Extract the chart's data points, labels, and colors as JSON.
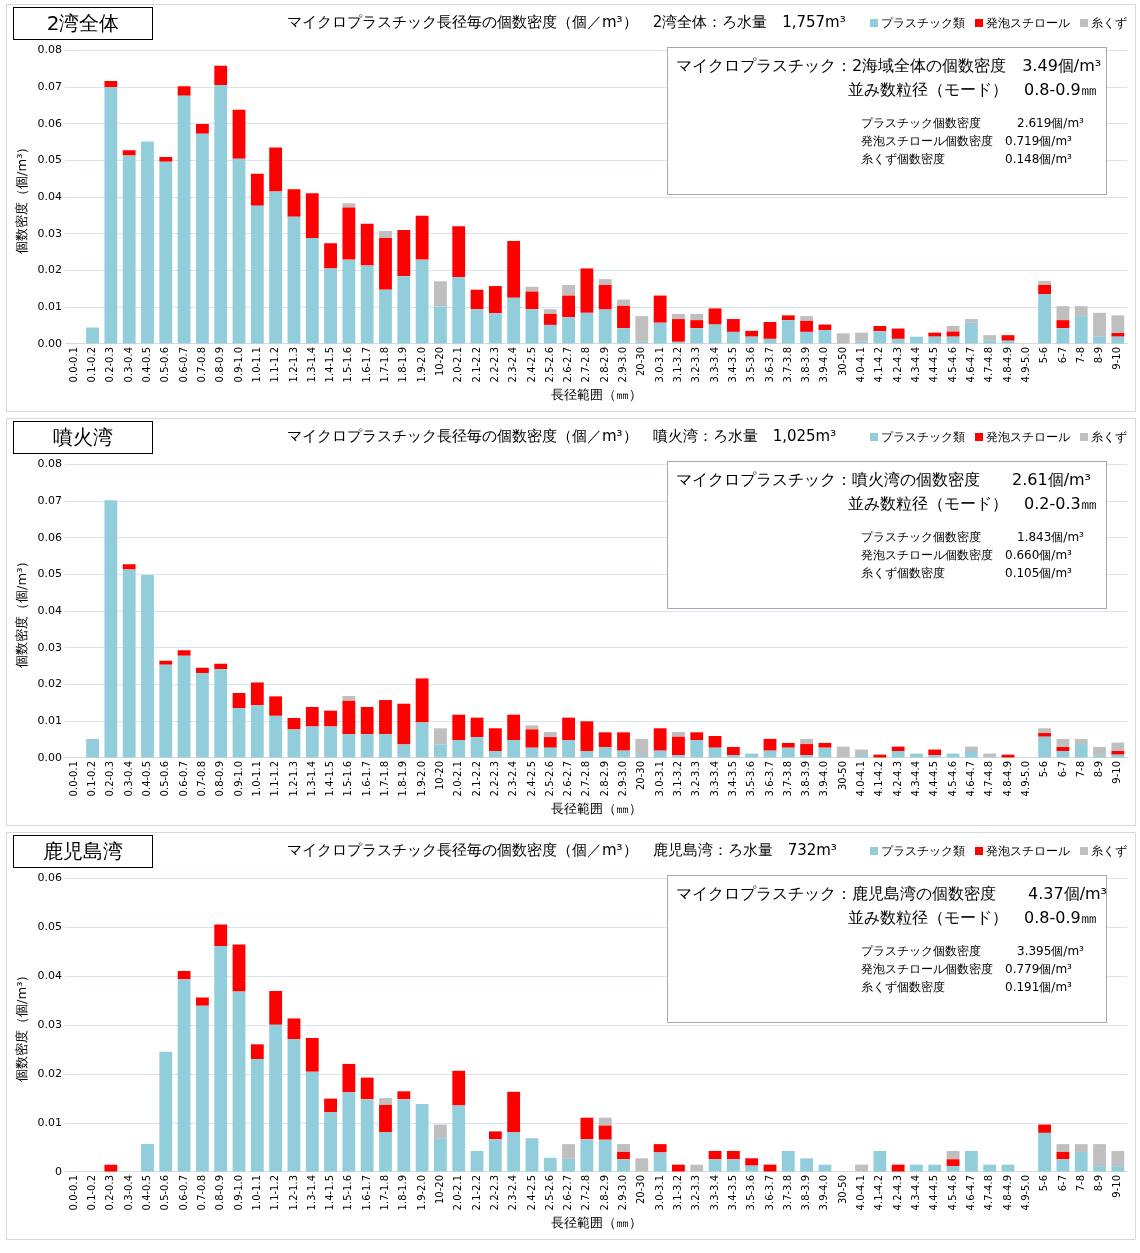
{
  "chart_data": [
    {
      "type": "bar",
      "subtitle": "2湾全体",
      "title": "マイクロプラスチック長径毎の個数密度（個／m³）　2湾全体：ろ水量　1,757m³",
      "xlabel": "長径範囲（㎜）",
      "ylabel": "個数密度（個/m³）",
      "categories": [
        "0.0-0.1",
        "0.1-0.2",
        "0.2-0.3",
        "0.3-0.4",
        "0.4-0.5",
        "0.5-0.6",
        "0.6-0.7",
        "0.7-0.8",
        "0.8-0.9",
        "0.9-1.0",
        "1.0-1.1",
        "1.1-1.2",
        "1.2-1.3",
        "1.3-1.4",
        "1.4-1.5",
        "1.5-1.6",
        "1.6-1.7",
        "1.7-1.8",
        "1.8-1.9",
        "1.9-2.0",
        "10-20",
        "2.0-2.1",
        "2.1-2.2",
        "2.2-2.3",
        "2.3-2.4",
        "2.4-2.5",
        "2.5-2.6",
        "2.6-2.7",
        "2.7-2.8",
        "2.8-2.9",
        "2.9-3.0",
        "20-30",
        "3.0-3.1",
        "3.1-3.2",
        "3.2-3.3",
        "3.3-3.4",
        "3.4-3.5",
        "3.5-3.6",
        "3.6-3.7",
        "3.7-3.8",
        "3.8-3.9",
        "3.9-4.0",
        "30-50",
        "4.0-4.1",
        "4.1-4.2",
        "4.2-4.3",
        "4.3-4.4",
        "4.4-4.5",
        "4.5-4.6",
        "4.6-4.7",
        "4.7-4.8",
        "4.8-4.9",
        "4.9-5.0",
        "5-6",
        "6-7",
        "7-8",
        "8-9",
        "9-10"
      ],
      "series": [
        {
          "name": "プラスチック類",
          "color": "#92cddc",
          "values": [
            0,
            0.0045,
            0.07,
            0.0514,
            0.0552,
            0.0497,
            0.0677,
            0.0573,
            0.0706,
            0.0505,
            0.0377,
            0.0416,
            0.0347,
            0.0289,
            0.0206,
            0.023,
            0.0214,
            0.0148,
            0.0185,
            0.023,
            0.0102,
            0.0182,
            0.0095,
            0.0084,
            0.0126,
            0.0095,
            0.0052,
            0.0073,
            0.0085,
            0.0094,
            0.0043,
            0.0006,
            0.0058,
            0.0006,
            0.0043,
            0.0053,
            0.0033,
            0.002,
            0.0014,
            0.0065,
            0.0033,
            0.0038,
            0,
            0.0006,
            0.0035,
            0.0014,
            0.002,
            0.002,
            0.002,
            0.0058,
            0.001,
            0.0009,
            0,
            0.0136,
            0.0043,
            0.0076,
            0.002,
            0.002
          ]
        },
        {
          "name": "発泡スチロール",
          "color": "#ff0000",
          "values": [
            0,
            0,
            0.0017,
            0.0014,
            0,
            0.0013,
            0.0026,
            0.0027,
            0.0053,
            0.0134,
            0.0087,
            0.012,
            0.0075,
            0.0122,
            0.0069,
            0.0142,
            0.0114,
            0.0141,
            0.0126,
            0.012,
            0,
            0.0139,
            0.0053,
            0.0074,
            0.0155,
            0.0048,
            0.003,
            0.0059,
            0.0121,
            0.0067,
            0.0061,
            0,
            0.0074,
            0.0062,
            0.0022,
            0.0044,
            0.0035,
            0.0016,
            0.0046,
            0.0013,
            0.003,
            0.0015,
            0,
            0,
            0.0014,
            0.0028,
            0,
            0.0011,
            0.0014,
            0,
            0,
            0.0015,
            0,
            0.0025,
            0.0022,
            0,
            0,
            0.001
          ]
        },
        {
          "name": "糸くず",
          "color": "#bfbfbf",
          "values": [
            0,
            0,
            0,
            0,
            0,
            0,
            0,
            0,
            0,
            0,
            0,
            0,
            0,
            0,
            0,
            0.0012,
            0,
            0.0019,
            0,
            0,
            0.0069,
            0,
            0,
            0,
            0,
            0.0013,
            0.0013,
            0.0029,
            0,
            0.0016,
            0.0017,
            0.007,
            0,
            0.0014,
            0.0017,
            0,
            0,
            0,
            0,
            0,
            0.0013,
            0,
            0.0029,
            0.0025,
            0,
            0,
            0,
            0,
            0.0015,
            0.001,
            0.0014,
            0,
            0,
            0.0011,
            0.0038,
            0.0027,
            0.0065,
            0.0048
          ]
        }
      ],
      "stacked": true,
      "ylim": [
        0,
        0.08
      ],
      "yticks": [
        {
          "value": 0,
          "label": "0.00"
        },
        0.01,
        0.02,
        0.03,
        0.04,
        0.05,
        0.06,
        0.07,
        0.08
      ],
      "grid": "y",
      "legend": "top right",
      "annotations": [
        "マイクロプラスチック：2海域全体の個数密度　3.49個/m³",
        "並み数粒径（モード）　0.8-0.9㎜",
        "プラスチック個数密度　　　2.619個/m³",
        "発泡スチロール個数密度　0.719個/m³",
        "糸くず個数密度　　　　　0.148個/m³"
      ]
    },
    {
      "type": "bar",
      "subtitle": "噴火湾",
      "title": "マイクロプラスチック長径毎の個数密度（個／m³）　噴火湾：ろ水量　1,025m³",
      "xlabel": "長径範囲（㎜）",
      "ylabel": "個数密度（個/m³）",
      "categories": [
        "0.0-0.1",
        "0.1-0.2",
        "0.2-0.3",
        "0.3-0.4",
        "0.4-0.5",
        "0.5-0.6",
        "0.6-0.7",
        "0.7-0.8",
        "0.8-0.9",
        "0.9-1.0",
        "1.0-1.1",
        "1.1-1.2",
        "1.2-1.3",
        "1.3-1.4",
        "1.4-1.5",
        "1.5-1.6",
        "1.6-1.7",
        "1.7-1.8",
        "1.8-1.9",
        "1.9-2.0",
        "10-20",
        "2.0-2.1",
        "2.1-2.2",
        "2.2-2.3",
        "2.3-2.4",
        "2.4-2.5",
        "2.5-2.6",
        "2.6-2.7",
        "2.7-2.8",
        "2.8-2.9",
        "2.9-3.0",
        "20-30",
        "3.0-3.1",
        "3.1-3.2",
        "3.2-3.3",
        "3.3-3.4",
        "3.4-3.5",
        "3.5-3.6",
        "3.6-3.7",
        "3.7-3.8",
        "3.8-3.9",
        "3.9-4.0",
        "30-50",
        "4.0-4.1",
        "4.1-4.2",
        "4.2-4.3",
        "4.3-4.4",
        "4.4-4.5",
        "4.5-4.6",
        "4.6-4.7",
        "4.7-4.8",
        "4.8-4.9",
        "4.9-5.0",
        "5-6",
        "6-7",
        "7-8",
        "8-9",
        "9-10"
      ],
      "series": [
        {
          "name": "プラスチック類",
          "color": "#92cddc",
          "values": [
            0,
            0.0052,
            0.0703,
            0.0514,
            0.0499,
            0.0254,
            0.0279,
            0.0232,
            0.0242,
            0.0136,
            0.0144,
            0.0115,
            0.0078,
            0.0086,
            0.0086,
            0.0065,
            0.0065,
            0.0065,
            0.0037,
            0.0097,
            0.0037,
            0.0049,
            0.0057,
            0.0019,
            0.0049,
            0.0028,
            0.0028,
            0.0049,
            0.0019,
            0.0029,
            0.002,
            0.0008,
            0.002,
            0.0008,
            0.0049,
            0.0028,
            0.0008,
            0.0012,
            0.002,
            0.0028,
            0.0008,
            0.0028,
            0,
            0.0008,
            null,
            0.0019,
            0.0012,
            0.0008,
            0.0012,
            0.0019,
            0,
            null,
            0,
            0.0058,
            0.0019,
            0.0038,
            0.0006,
            0.0009
          ]
        },
        {
          "name": "発泡スチロール",
          "color": "#ff0000",
          "values": [
            0,
            0,
            0,
            0.0014,
            0,
            0.0011,
            0.0015,
            0.0014,
            0.0015,
            0.0041,
            0.0062,
            0.0053,
            0.0031,
            0.0053,
            0.0043,
            0.0091,
            0.0074,
            0.0093,
            0.0111,
            0.012,
            0,
            0.0069,
            0.0053,
            0.0062,
            0.0069,
            0.005,
            0.0029,
            0.0061,
            0.0081,
            0.0041,
            0.005,
            0,
            0.0061,
            0.005,
            0.0021,
            0.0032,
            0.0022,
            0,
            0.0032,
            0.0013,
            0.003,
            0.0013,
            0,
            0,
            0.0009,
            0.0012,
            0,
            0.0015,
            0,
            0,
            0,
            0.0009,
            0,
            0.001,
            0.0011,
            0,
            0,
            0.001
          ]
        },
        {
          "name": "糸くず",
          "color": "#bfbfbf",
          "values": [
            0,
            0,
            0,
            0,
            0,
            0,
            0,
            0,
            0,
            0,
            0,
            0,
            0,
            0,
            0,
            0.0013,
            0,
            0,
            0,
            0,
            0.0044,
            0,
            0,
            0,
            0,
            0.0011,
            0.0014,
            0,
            0,
            0,
            0,
            0.0044,
            0,
            0.0013,
            0,
            0,
            0,
            0,
            0,
            0,
            0.0014,
            0,
            0.0031,
            0.0015,
            0,
            0,
            0,
            0,
            0,
            0.0012,
            0.0012,
            0,
            0,
            0.0013,
            0.0022,
            0.0014,
            0.0024,
            0.0023
          ]
        }
      ],
      "stacked": true,
      "ylim": [
        0,
        0.08
      ],
      "yticks": [
        {
          "value": 0,
          "label": "0.00"
        },
        0.01,
        0.02,
        0.03,
        0.04,
        0.05,
        0.06,
        0.07,
        0.08
      ],
      "grid": "y",
      "legend": "top right",
      "annotations": [
        "マイクロプラスチック：噴火湾の個数密度　　2.61個/m³",
        "並み数粒径（モード）　0.2-0.3㎜",
        "プラスチック個数密度　　　1.843個/m³",
        "発泡スチロール個数密度　0.660個/m³",
        "糸くず個数密度　　　　　0.105個/m³"
      ]
    },
    {
      "type": "bar",
      "subtitle": "鹿児島湾",
      "title": "マイクロプラスチック長径毎の個数密度（個／m³）　鹿児島湾：ろ水量　732m³",
      "xlabel": "長径範囲（㎜）",
      "ylabel": "個数密度（個/m³）",
      "categories": [
        "0.0-0.1",
        "0.1-0.2",
        "0.2-0.3",
        "0.3-0.4",
        "0.4-0.5",
        "0.5-0.6",
        "0.6-0.7",
        "0.7-0.8",
        "0.8-0.9",
        "0.9-1.0",
        "1.0-1.1",
        "1.1-1.2",
        "1.2-1.3",
        "1.3-1.4",
        "1.4-1.5",
        "1.5-1.6",
        "1.6-1.7",
        "1.7-1.8",
        "1.8-1.9",
        "1.9-2.0",
        "10-20",
        "2.0-2.1",
        "2.1-2.2",
        "2.2-2.3",
        "2.3-2.4",
        "2.4-2.5",
        "2.5-2.6",
        "2.6-2.7",
        "2.7-2.8",
        "2.8-2.9",
        "2.9-3.0",
        "20-30",
        "3.0-3.1",
        "3.1-3.2",
        "3.2-3.3",
        "3.3-3.4",
        "3.4-3.5",
        "3.5-3.6",
        "3.6-3.7",
        "3.7-3.8",
        "3.8-3.9",
        "3.9-4.0",
        "30-50",
        "4.0-4.1",
        "4.1-4.2",
        "4.2-4.3",
        "4.3-4.4",
        "4.4-4.5",
        "4.5-4.6",
        "4.6-4.7",
        "4.7-4.8",
        "4.8-4.9",
        "4.9-5.0",
        "5-6",
        "6-7",
        "7-8",
        "8-9",
        "9-10"
      ],
      "series": [
        {
          "name": "プラスチック類",
          "color": "#92cddc",
          "values": [
            0,
            0,
            0,
            0,
            0.0057,
            0.0246,
            0.0394,
            0.034,
            0.0462,
            0.0369,
            0.0231,
            0.0301,
            0.0272,
            0.0205,
            0.0122,
            0.0163,
            0.0149,
            0.0081,
            0.0149,
            0.0139,
            0.0068,
            0.0136,
            0.0043,
            0.0067,
            0.0081,
            0.0069,
            0.0029,
            0.0027,
            0.0067,
            0.0066,
            0.0026,
            0,
            0.004,
            0,
            0,
            0.0026,
            0.0026,
            0.0013,
            0,
            0.0043,
            0.0028,
            0.0015,
            0,
            0,
            0.0043,
            0,
            0.0015,
            0.0015,
            0.0012,
            0.0043,
            0.0015,
            0.0015,
            0,
            0.008,
            0.0026,
            0.0041,
            0.0012,
            0.0012
          ]
        },
        {
          "name": "発泡スチロール",
          "color": "#ff0000",
          "values": [
            0,
            0,
            0.0015,
            0,
            0,
            0,
            0.0017,
            0.0017,
            0.0044,
            0.0096,
            0.003,
            0.0069,
            0.0042,
            0.0069,
            0.0028,
            0.0058,
            0.0044,
            0.0056,
            0.0016,
            0,
            0,
            0.0071,
            0,
            0.0016,
            0.0083,
            0,
            0,
            0,
            0.0044,
            0.0029,
            0.0015,
            0,
            0.0017,
            0.0015,
            0,
            0.0017,
            0.0017,
            0.0015,
            0.0015,
            0,
            0,
            0,
            0,
            0,
            0,
            0.0015,
            0,
            0,
            0.0014,
            0,
            0,
            0,
            0,
            0.0017,
            0.0015,
            0,
            0,
            0
          ]
        },
        {
          "name": "糸くず",
          "color": "#bfbfbf",
          "values": [
            0,
            0,
            0,
            0,
            0,
            0,
            0,
            0,
            0,
            0,
            0,
            0,
            0,
            0,
            0,
            0,
            0,
            0.0014,
            0,
            0,
            0.0029,
            0,
            0,
            0,
            0,
            0,
            0,
            0.003,
            0,
            0.0016,
            0.0016,
            0.0028,
            0,
            0,
            0.0015,
            0,
            0,
            0,
            0,
            0,
            0,
            0,
            0,
            0.0015,
            0,
            0,
            0,
            0,
            0.0017,
            0,
            0,
            0,
            0,
            0,
            0.0016,
            0.0016,
            0.0045,
            0.0031
          ]
        }
      ],
      "stacked": true,
      "ylim": [
        0,
        0.06
      ],
      "yticks": [
        0,
        0.01,
        0.02,
        0.03,
        0.04,
        0.05,
        0.06
      ],
      "grid": "y",
      "legend": "top right",
      "annotations": [
        "マイクロプラスチック：鹿児島湾の個数密度　　4.37個/m³",
        "並み数粒径（モード）　0.8-0.9㎜",
        "プラスチック個数密度　　　3.395個/m³",
        "発泡スチロール個数密度　0.779個/m³",
        "糸くず個数密度　　　　　0.191個/m³"
      ]
    }
  ]
}
